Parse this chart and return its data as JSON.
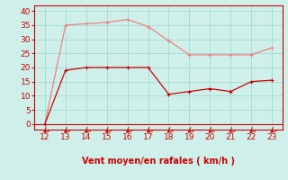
{
  "x": [
    12,
    13,
    14,
    15,
    16,
    17,
    18,
    19,
    20,
    21,
    22,
    23
  ],
  "y_avg": [
    0,
    35,
    35.5,
    36,
    37,
    34.5,
    29.5,
    24.5,
    24.5,
    24.5,
    24.5,
    27
  ],
  "y_gust": [
    0,
    19,
    20,
    20,
    20,
    20,
    10.5,
    11.5,
    12.5,
    11.5,
    15,
    15.5
  ],
  "color_avg": "#f08080",
  "color_gust": "#cc0000",
  "xlabel": "Vent moyen/en rafales ( km/h )",
  "xlim": [
    11.5,
    23.5
  ],
  "ylim": [
    -2,
    42
  ],
  "yticks": [
    0,
    5,
    10,
    15,
    20,
    25,
    30,
    35,
    40
  ],
  "xticks": [
    12,
    13,
    14,
    15,
    16,
    17,
    18,
    19,
    20,
    21,
    22,
    23
  ],
  "bg_color": "#cff0ea",
  "grid_color": "#a8ddd6",
  "axis_color": "#cc0000",
  "xlabel_color": "#cc0000",
  "tick_color": "#cc0000"
}
